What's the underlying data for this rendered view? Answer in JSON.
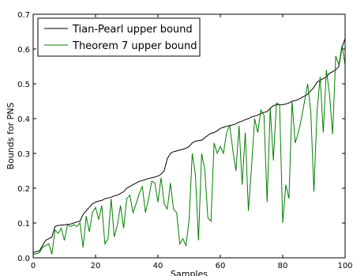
{
  "chart_data": {
    "type": "line",
    "xlabel": "Samples",
    "ylabel": "Bounds for PNS",
    "xlim": [
      0,
      100
    ],
    "ylim": [
      0,
      0.7
    ],
    "xticks": [
      0,
      20,
      40,
      60,
      80,
      100
    ],
    "yticks": [
      0.0,
      0.1,
      0.2,
      0.3,
      0.4,
      0.5,
      0.6,
      0.7
    ],
    "xtick_labels": [
      "0",
      "20",
      "40",
      "60",
      "80",
      "100"
    ],
    "ytick_labels": [
      "0.0",
      "0.1",
      "0.2",
      "0.3",
      "0.4",
      "0.5",
      "0.6",
      "0.7"
    ],
    "grid": false,
    "legend_position": "upper-left",
    "x": [
      0,
      1,
      2,
      3,
      4,
      5,
      6,
      7,
      8,
      9,
      10,
      11,
      12,
      13,
      14,
      15,
      16,
      17,
      18,
      19,
      20,
      21,
      22,
      23,
      24,
      25,
      26,
      27,
      28,
      29,
      30,
      31,
      32,
      33,
      34,
      35,
      36,
      37,
      38,
      39,
      40,
      41,
      42,
      43,
      44,
      45,
      46,
      47,
      48,
      49,
      50,
      51,
      52,
      53,
      54,
      55,
      56,
      57,
      58,
      59,
      60,
      61,
      62,
      63,
      64,
      65,
      66,
      67,
      68,
      69,
      70,
      71,
      72,
      73,
      74,
      75,
      76,
      77,
      78,
      79,
      80,
      81,
      82,
      83,
      84,
      85,
      86,
      87,
      88,
      89,
      90,
      91,
      92,
      93,
      94,
      95,
      96,
      97,
      98,
      99,
      100
    ],
    "series": [
      {
        "name": "Tian-Pearl upper bound",
        "color": "#000000",
        "values": [
          0.015,
          0.018,
          0.02,
          0.035,
          0.05,
          0.055,
          0.06,
          0.09,
          0.093,
          0.094,
          0.095,
          0.096,
          0.097,
          0.1,
          0.103,
          0.105,
          0.125,
          0.135,
          0.145,
          0.155,
          0.16,
          0.163,
          0.165,
          0.17,
          0.172,
          0.174,
          0.178,
          0.18,
          0.185,
          0.19,
          0.2,
          0.205,
          0.21,
          0.215,
          0.22,
          0.222,
          0.225,
          0.228,
          0.23,
          0.232,
          0.235,
          0.24,
          0.25,
          0.285,
          0.3,
          0.305,
          0.307,
          0.31,
          0.312,
          0.315,
          0.32,
          0.33,
          0.335,
          0.337,
          0.338,
          0.345,
          0.352,
          0.358,
          0.36,
          0.365,
          0.372,
          0.375,
          0.378,
          0.38,
          0.382,
          0.385,
          0.39,
          0.393,
          0.397,
          0.4,
          0.405,
          0.407,
          0.41,
          0.415,
          0.418,
          0.42,
          0.43,
          0.437,
          0.44,
          0.44,
          0.44,
          0.442,
          0.445,
          0.45,
          0.452,
          0.455,
          0.46,
          0.465,
          0.47,
          0.48,
          0.49,
          0.505,
          0.51,
          0.515,
          0.52,
          0.53,
          0.535,
          0.54,
          0.55,
          0.605,
          0.63
        ]
      },
      {
        "name": "Theorem 7 upper bound",
        "color": "#008000",
        "values": [
          0.01,
          0.012,
          0.015,
          0.03,
          0.035,
          0.04,
          0.01,
          0.08,
          0.07,
          0.085,
          0.05,
          0.095,
          0.09,
          0.095,
          0.09,
          0.1,
          0.03,
          0.12,
          0.075,
          0.13,
          0.145,
          0.11,
          0.15,
          0.04,
          0.055,
          0.17,
          0.06,
          0.095,
          0.15,
          0.085,
          0.17,
          0.18,
          0.13,
          0.155,
          0.185,
          0.205,
          0.13,
          0.17,
          0.22,
          0.215,
          0.16,
          0.23,
          0.155,
          0.14,
          0.215,
          0.14,
          0.13,
          0.04,
          0.055,
          0.035,
          0.11,
          0.3,
          0.24,
          0.05,
          0.3,
          0.255,
          0.115,
          0.105,
          0.33,
          0.3,
          0.32,
          0.3,
          0.36,
          0.38,
          0.31,
          0.25,
          0.38,
          0.21,
          0.36,
          0.135,
          0.26,
          0.4,
          0.36,
          0.425,
          0.41,
          0.16,
          0.43,
          0.28,
          0.445,
          0.44,
          0.1,
          0.21,
          0.17,
          0.45,
          0.33,
          0.36,
          0.4,
          0.45,
          0.5,
          0.42,
          0.19,
          0.42,
          0.52,
          0.36,
          0.54,
          0.47,
          0.355,
          0.58,
          0.555,
          0.61,
          0.555
        ]
      }
    ]
  }
}
